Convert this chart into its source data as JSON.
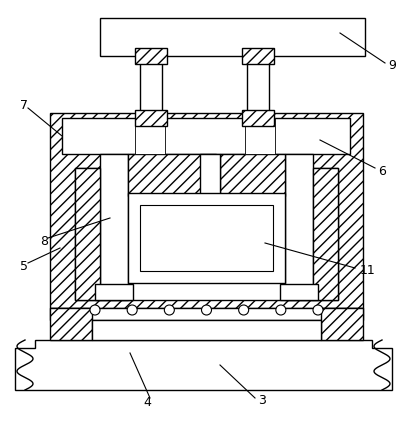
{
  "bg_color": "#ffffff",
  "line_color": "#000000",
  "figsize": [
    4.07,
    4.48
  ],
  "dpi": 100
}
